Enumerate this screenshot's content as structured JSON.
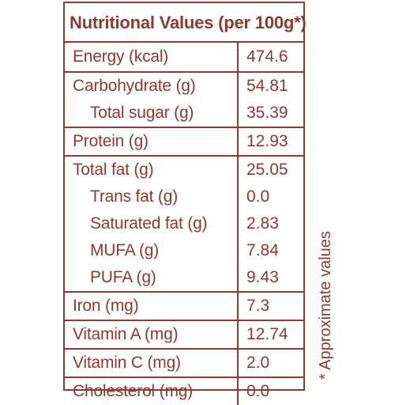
{
  "title": "Nutritional Values (per 100g*)",
  "footnote": "* Approximate values",
  "colors": {
    "accent": "#8e3a2e",
    "background": "#ffffff"
  },
  "groups": [
    {
      "rows": [
        {
          "label": "Energy (kcal)",
          "value": "474.6",
          "sub": false
        }
      ]
    },
    {
      "rows": [
        {
          "label": "Carbohydrate (g)",
          "value": "54.81",
          "sub": false
        },
        {
          "label": "Total sugar (g)",
          "value": "35.39",
          "sub": true
        }
      ]
    },
    {
      "rows": [
        {
          "label": "Protein (g)",
          "value": "12.93",
          "sub": false
        }
      ]
    },
    {
      "rows": [
        {
          "label": "Total fat (g)",
          "value": "25.05",
          "sub": false
        },
        {
          "label": "Trans fat (g)",
          "value": "0.0",
          "sub": true
        },
        {
          "label": "Saturated fat (g)",
          "value": "2.83",
          "sub": true
        },
        {
          "label": "MUFA (g)",
          "value": "7.84",
          "sub": true
        },
        {
          "label": "PUFA (g)",
          "value": "9.43",
          "sub": true
        }
      ]
    },
    {
      "rows": [
        {
          "label": "Iron (mg)",
          "value": "7.3",
          "sub": false
        }
      ]
    },
    {
      "rows": [
        {
          "label": "Vitamin A (mg)",
          "value": "12.74",
          "sub": false
        }
      ]
    },
    {
      "rows": [
        {
          "label": "Vitamin C (mg)",
          "value": "2.0",
          "sub": false
        }
      ]
    },
    {
      "rows": [
        {
          "label": "Cholesterol (mg)",
          "value": "0.0",
          "sub": false
        }
      ]
    }
  ]
}
